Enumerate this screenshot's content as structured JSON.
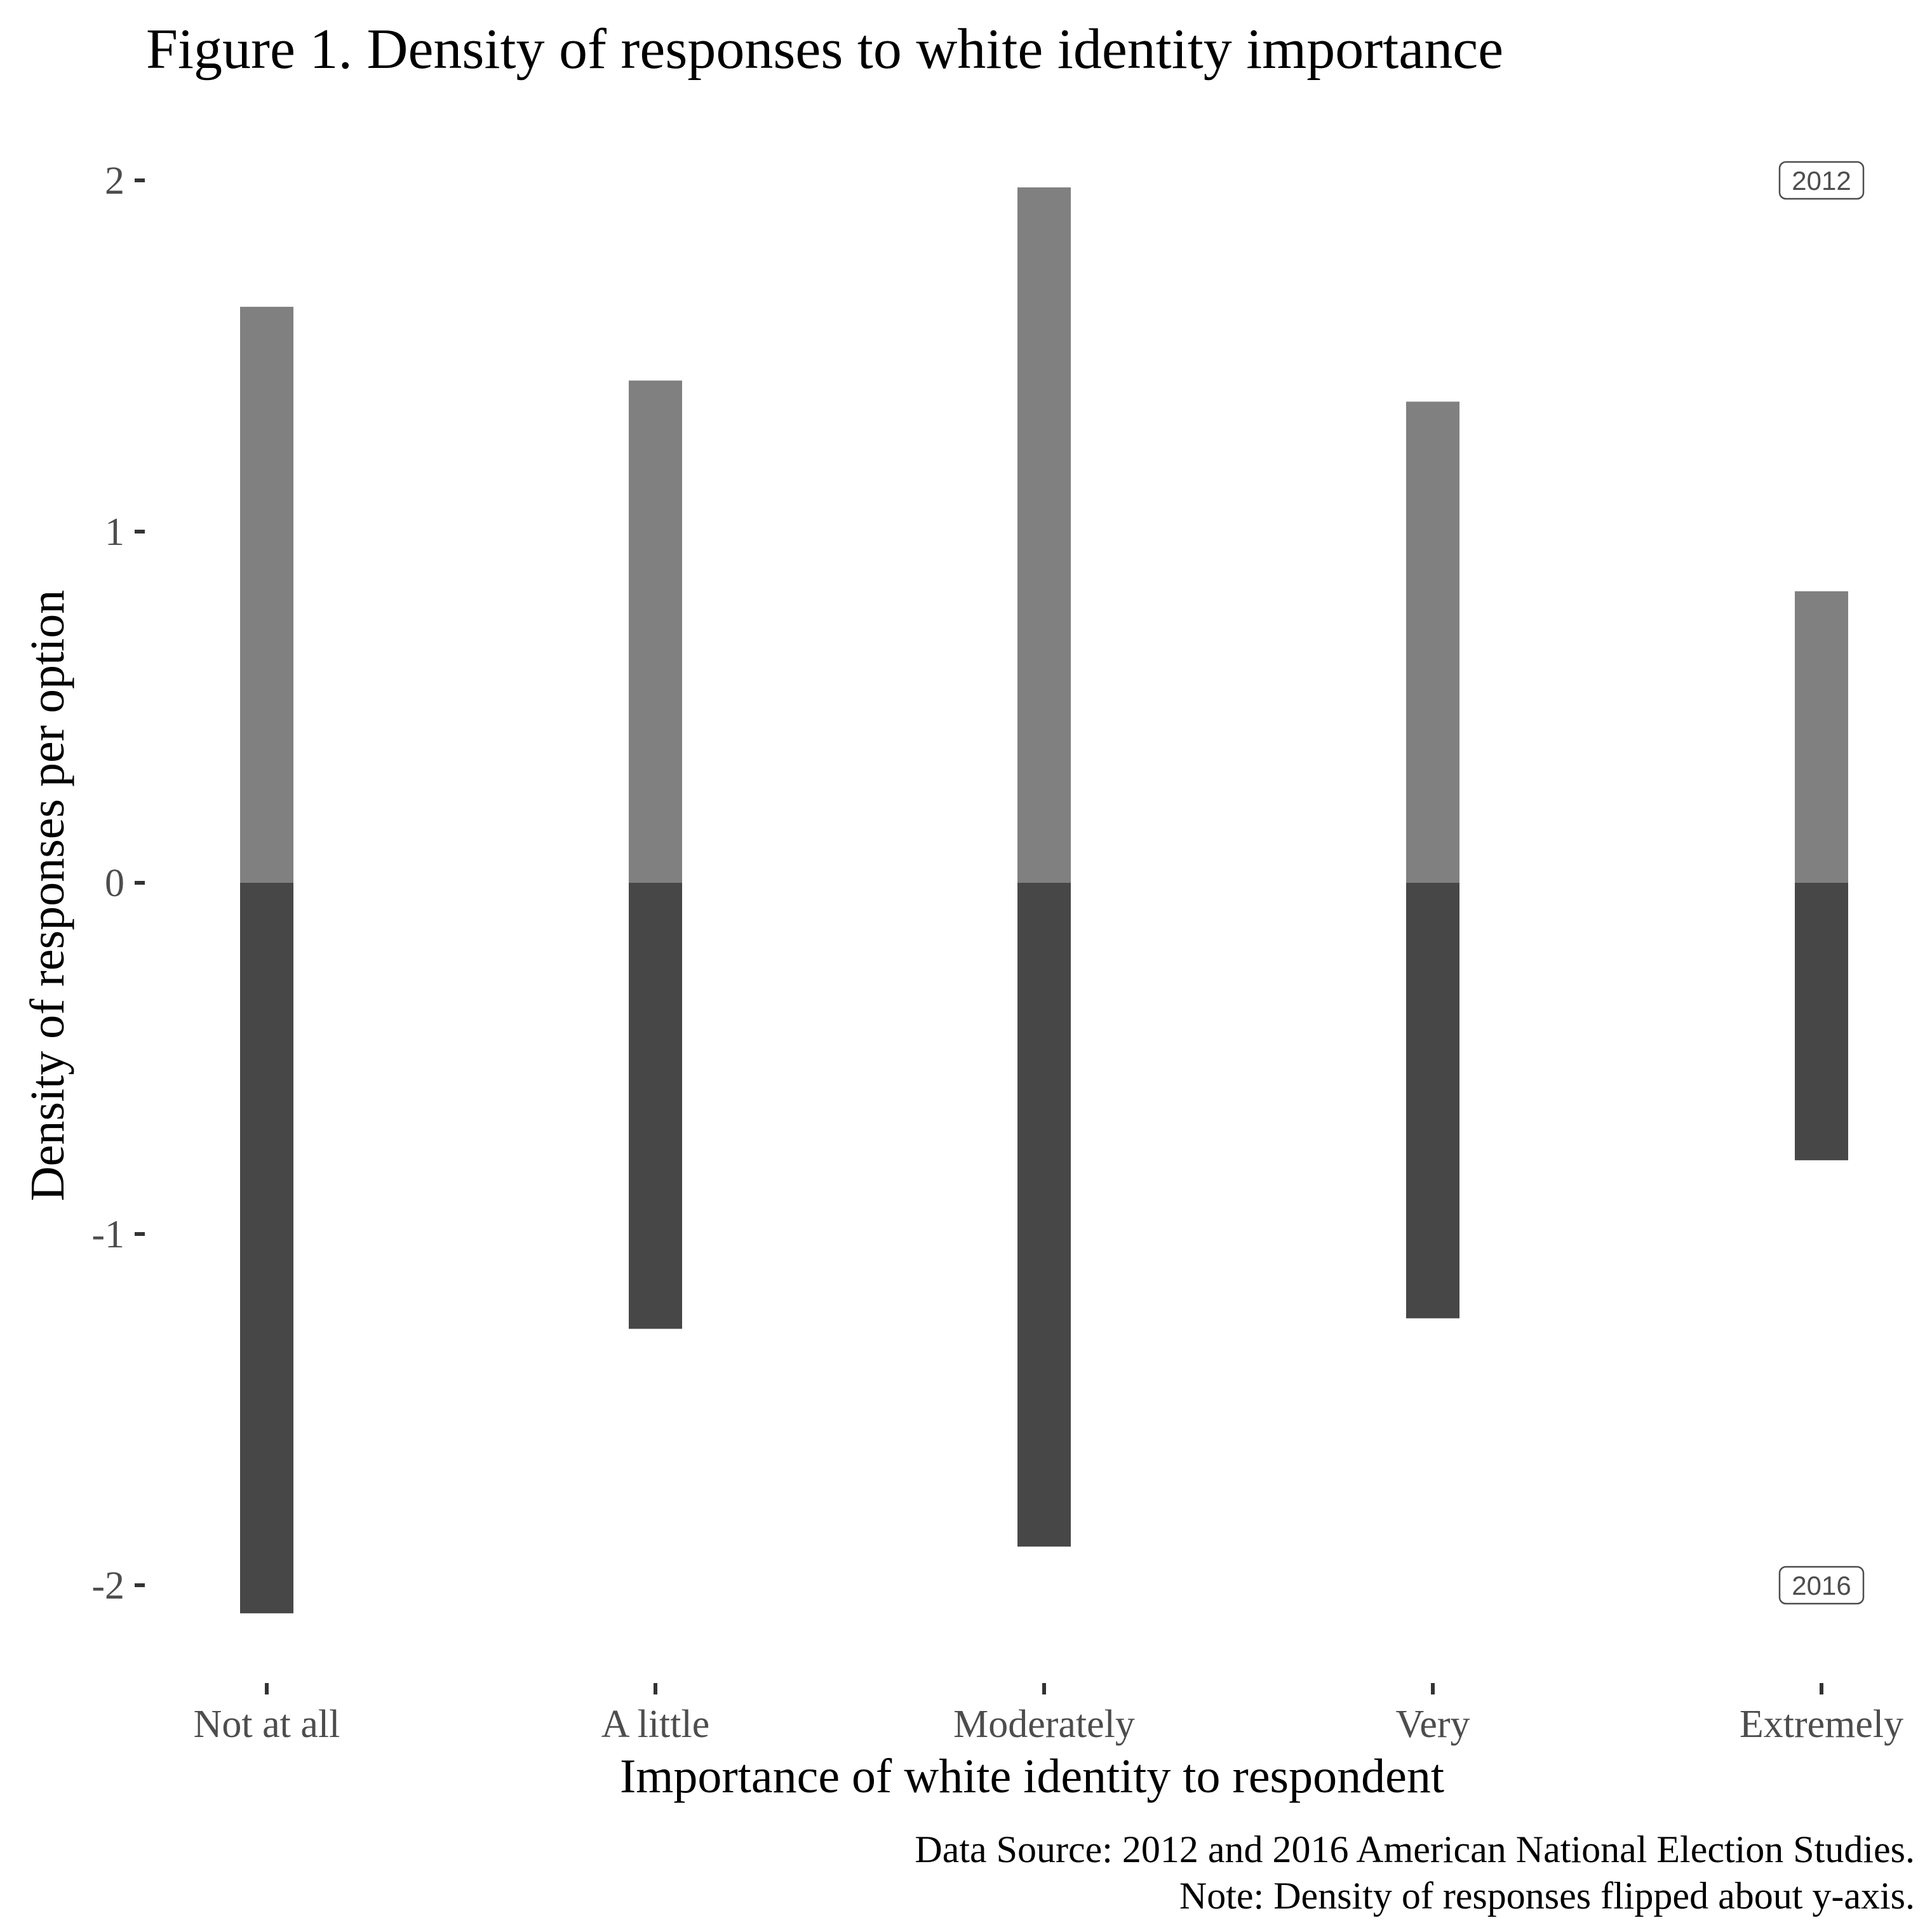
{
  "chart_data": {
    "type": "bar",
    "title": "Figure 1. Density of responses to white identity importance",
    "xlabel": "Importance of white identity to respondent",
    "ylabel": "Density of responses per option",
    "categories": [
      "Not at all",
      "A little",
      "Moderately",
      "Very",
      "Extremely"
    ],
    "series": [
      {
        "name": "2012",
        "values": [
          1.64,
          1.43,
          1.98,
          1.37,
          0.83
        ],
        "color": "#808080"
      },
      {
        "name": "2016",
        "values": [
          -2.08,
          -1.27,
          -1.89,
          -1.24,
          -0.79
        ],
        "color": "#474747"
      }
    ],
    "ylim": [
      -2.2,
      2.15
    ],
    "yticks": [
      2,
      1,
      0,
      -1,
      -2
    ],
    "ytick_labels": [
      "2",
      "1",
      "0",
      "-1",
      "-2"
    ],
    "grid": false,
    "captions": [
      "Data Source: 2012 and 2016 American National Election Studies.",
      "Note: Density of responses flipped about y-axis."
    ]
  }
}
